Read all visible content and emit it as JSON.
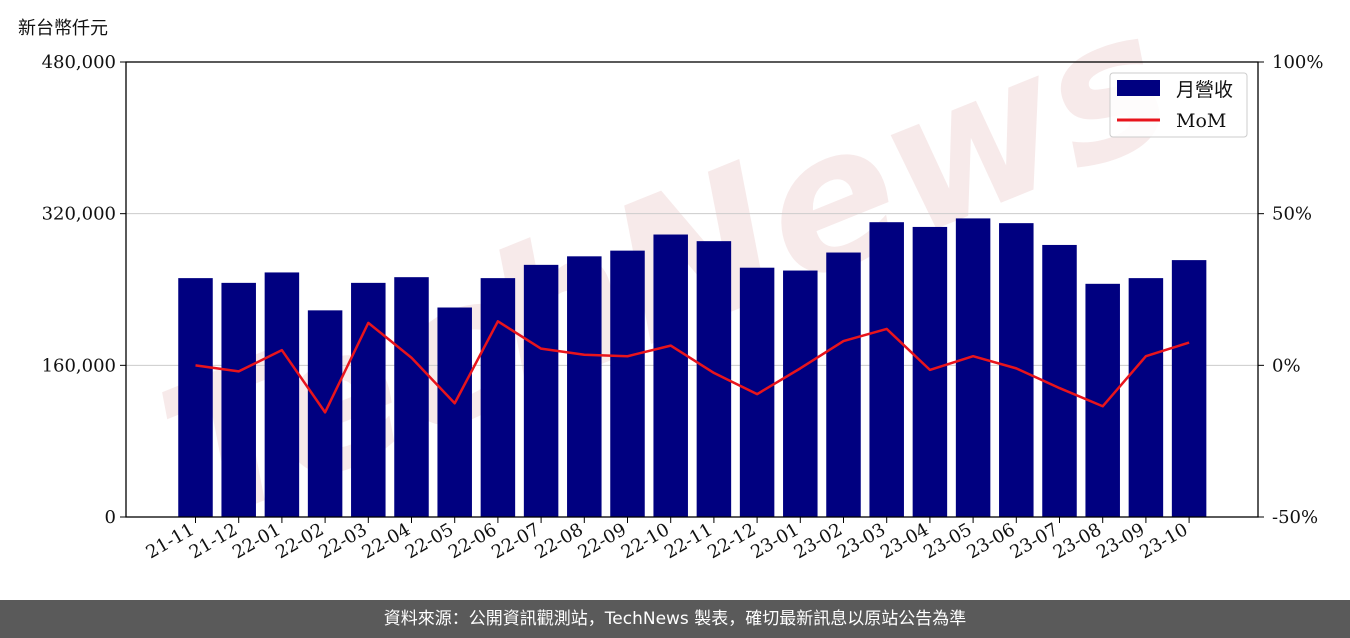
{
  "unit_label": "新台幣仟元",
  "footer_text": "資料來源：公開資訊觀測站，TechNews 製表，確切最新訊息以原站公告為準",
  "watermark_text": "TechNews",
  "colors": {
    "bar": "#000080",
    "line": "#e8141c",
    "grid": "#cccccc",
    "footer_bg": "#5a5a5a",
    "watermark": "#f2dcdc"
  },
  "chart_data": {
    "type": "bar",
    "categories": [
      "21-11",
      "21-12",
      "22-01",
      "22-02",
      "22-03",
      "22-04",
      "22-05",
      "22-06",
      "22-07",
      "22-08",
      "22-09",
      "22-10",
      "22-11",
      "22-12",
      "23-01",
      "23-02",
      "23-03",
      "23-04",
      "23-05",
      "23-06",
      "23-07",
      "23-08",
      "23-09",
      "23-10"
    ],
    "series": [
      {
        "name": "月營收",
        "type": "bar",
        "axis": "left",
        "values": [
          252000,
          247000,
          258000,
          218000,
          247000,
          253000,
          221000,
          252000,
          266000,
          275000,
          281000,
          298000,
          291000,
          263000,
          260000,
          279000,
          311000,
          306000,
          315000,
          310000,
          287000,
          246000,
          252000,
          271000
        ]
      },
      {
        "name": "MoM",
        "type": "line",
        "axis": "right",
        "values": [
          0,
          -2,
          5,
          -15.5,
          14,
          2.5,
          -12.5,
          14.5,
          5.5,
          3.5,
          3,
          6.5,
          -2.5,
          -9.5,
          -1,
          8,
          12,
          -1.5,
          3,
          -1,
          -7.5,
          -13.5,
          3,
          7.5
        ]
      }
    ],
    "y_left": {
      "ylim": [
        0,
        480000
      ],
      "ticks": [
        0,
        160000,
        320000,
        480000
      ],
      "tick_labels": [
        "0",
        "160,000",
        "320,000",
        "480,000"
      ]
    },
    "y_right": {
      "ylim": [
        -50,
        100
      ],
      "ticks": [
        -50,
        0,
        50,
        100
      ],
      "tick_labels": [
        "-50%",
        "0%",
        "50%",
        "100%"
      ]
    },
    "grid": "horizontal",
    "legend_placement": "top-right"
  }
}
